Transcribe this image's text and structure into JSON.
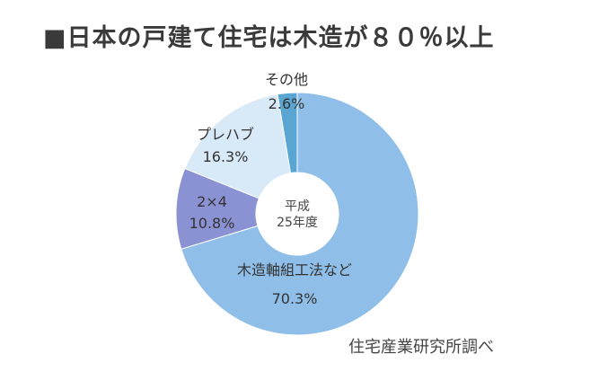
{
  "title": "■日本の戸建て住宅は木造が８０％以上",
  "source": "住宅産業研究所調べ",
  "chart_data": {
    "type": "pie",
    "subtype": "donut",
    "title": "■日本の戸建て住宅は木造が８０％以上",
    "center_label": [
      "平成",
      "25年度"
    ],
    "slices": [
      {
        "name": "木造軸組工法など",
        "value": 70.3,
        "label": "70.3%",
        "color": "#8fbfe8"
      },
      {
        "name": "2×4",
        "value": 10.8,
        "label": "10.8%",
        "color": "#8a92d4"
      },
      {
        "name": "プレハブ",
        "value": 16.3,
        "label": "16.3%",
        "color": "#d8e9f8"
      },
      {
        "name": "その他",
        "value": 2.6,
        "label": "2.6%",
        "color": "#5aa6d2"
      }
    ],
    "source": "住宅産業研究所調べ"
  }
}
